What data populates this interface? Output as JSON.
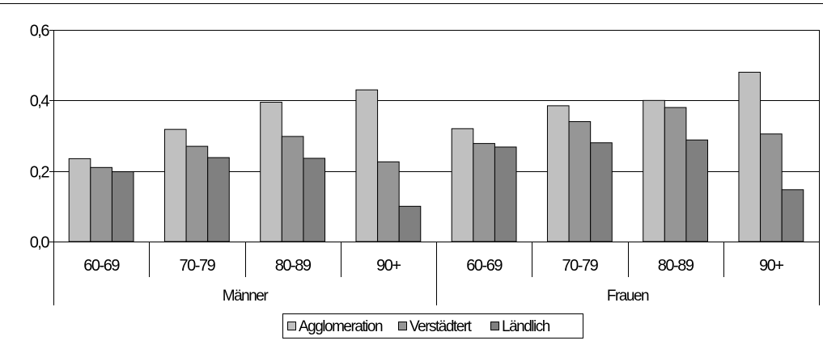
{
  "chart_data": {
    "type": "bar",
    "title": "",
    "xlabel": "",
    "ylabel": "",
    "ylim": [
      0,
      0.6
    ],
    "y_ticks": [
      "0,0",
      "0,2",
      "0,4",
      "0,6"
    ],
    "y_tick_values": [
      0,
      0.2,
      0.4,
      0.6
    ],
    "grid": true,
    "legend_position": "bottom",
    "groups": [
      {
        "label": "Männer",
        "categories": [
          "60-69",
          "70-79",
          "80-89",
          "90+"
        ]
      },
      {
        "label": "Frauen",
        "categories": [
          "60-69",
          "70-79",
          "80-89",
          "90+"
        ]
      }
    ],
    "series": [
      {
        "name": "Agglomeration",
        "color": "#c0c0c0",
        "values": [
          0.235,
          0.318,
          0.395,
          0.43,
          0.32,
          0.385,
          0.4,
          0.48
        ]
      },
      {
        "name": "Verstädtert",
        "color": "#969696",
        "values": [
          0.21,
          0.27,
          0.298,
          0.226,
          0.278,
          0.34,
          0.38,
          0.305
        ]
      },
      {
        "name": "Ländlich",
        "color": "#808080",
        "values": [
          0.198,
          0.238,
          0.236,
          0.1,
          0.268,
          0.28,
          0.288,
          0.147
        ]
      }
    ]
  }
}
